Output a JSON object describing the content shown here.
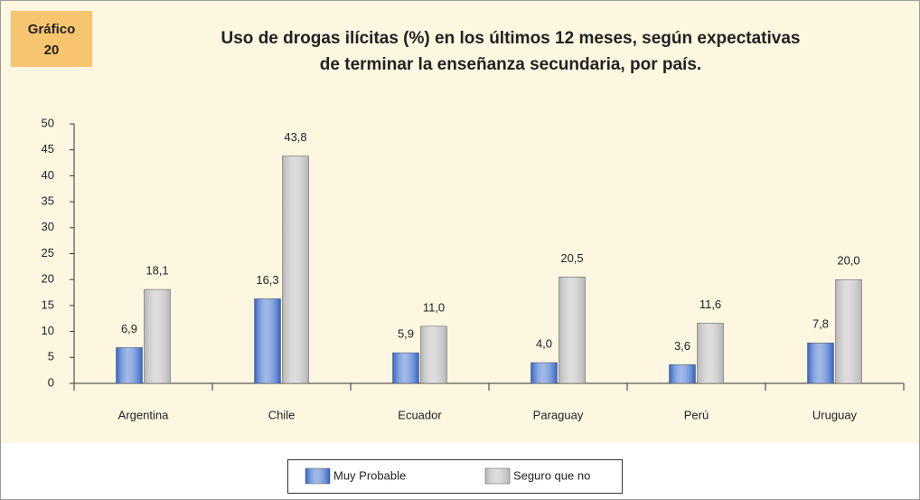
{
  "chart_data": {
    "type": "bar",
    "badge": [
      "Gráfico",
      "20"
    ],
    "title": [
      "Uso de drogas ilícitas (%) en los últimos 12 meses, según expectativas",
      "de terminar la enseñanza secundaria, por país."
    ],
    "categories": [
      "Argentina",
      "Chile",
      "Ecuador",
      "Paraguay",
      "Perú",
      "Uruguay"
    ],
    "series": [
      {
        "name": "Muy Probable",
        "color": "#2e62c6",
        "values": [
          6.9,
          16.3,
          5.9,
          4.0,
          3.6,
          7.8
        ],
        "value_labels": [
          "6,9",
          "16,3",
          "5,9",
          "4,0",
          "3,6",
          "7,8"
        ]
      },
      {
        "name": "Seguro que no",
        "color": "#b4b4b4",
        "values": [
          18.1,
          43.8,
          11.0,
          20.5,
          11.6,
          20.0
        ],
        "value_labels": [
          "18,1",
          "43,8",
          "11,0",
          "20,5",
          "11,6",
          "20,0"
        ]
      }
    ],
    "ylim": [
      0,
      50
    ],
    "yticks": [
      0,
      5,
      10,
      15,
      20,
      25,
      30,
      35,
      40,
      45,
      50
    ],
    "grid": false,
    "legend": "bottom"
  }
}
